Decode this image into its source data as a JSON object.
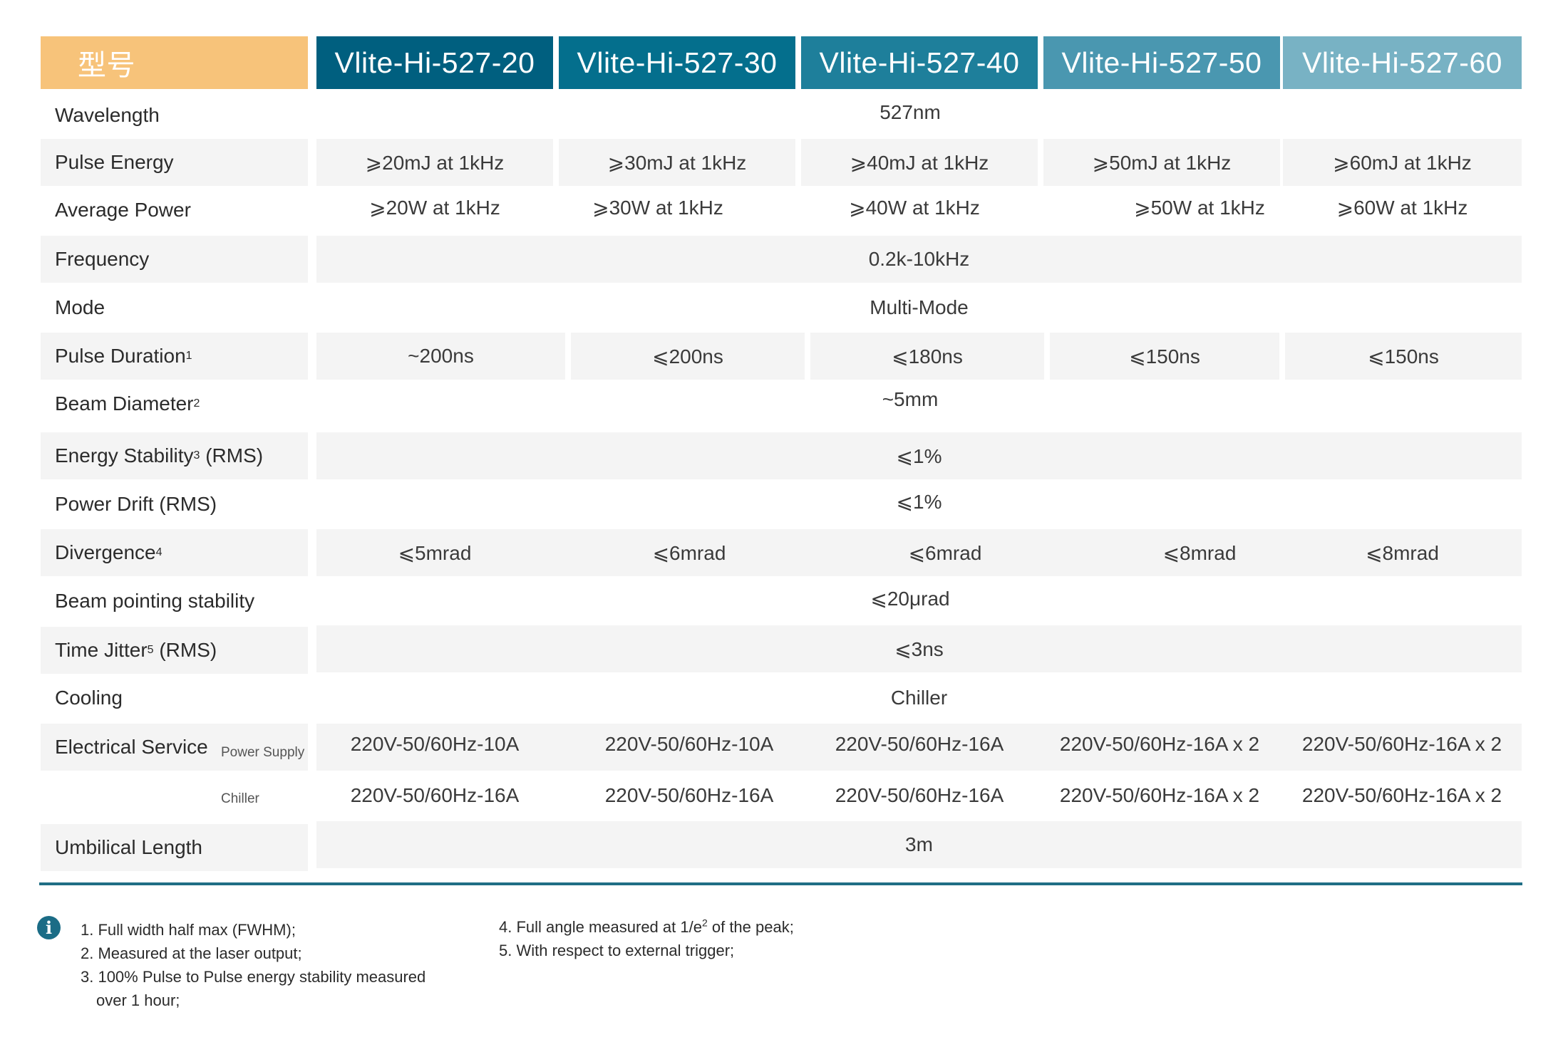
{
  "header": {
    "model_label": "型号",
    "models": [
      "Vlite-Hi-527-20",
      "Vlite-Hi-527-30",
      "Vlite-Hi-527-40",
      "Vlite-Hi-527-50",
      "Vlite-Hi-527-60"
    ],
    "colors": [
      "#005f7f",
      "#046f8d",
      "#1e7f9b",
      "#4a97b0",
      "#78b2c4"
    ]
  },
  "rows": {
    "wavelength": {
      "label": "Wavelength",
      "value": "527nm"
    },
    "pulse_energy": {
      "label": "Pulse Energy",
      "values": [
        "⩾20mJ at 1kHz",
        "⩾30mJ at 1kHz",
        "⩾40mJ at 1kHz",
        "⩾50mJ at 1kHz",
        "⩾60mJ at 1kHz"
      ]
    },
    "average_power": {
      "label": "Average Power",
      "values": [
        "⩾20W at 1kHz",
        "⩾30W at 1kHz",
        "⩾40W at 1kHz",
        "⩾50W at 1kHz",
        "⩾60W at 1kHz"
      ]
    },
    "frequency": {
      "label": "Frequency",
      "value": "0.2k-10kHz"
    },
    "mode": {
      "label": "Mode",
      "value": "Multi-Mode"
    },
    "pulse_duration": {
      "label": "Pulse Duration",
      "sup": "1",
      "values": [
        "~200ns",
        "⩽200ns",
        "⩽180ns",
        "⩽150ns",
        "⩽150ns"
      ]
    },
    "beam_diameter": {
      "label": "Beam Diameter",
      "sup": "2",
      "value": "~5mm"
    },
    "energy_stability": {
      "label": "Energy Stability",
      "sup": "3",
      "suffix": " (RMS)",
      "value": "⩽1%"
    },
    "power_drift": {
      "label": "Power Drift (RMS)",
      "value": "⩽1%"
    },
    "divergence": {
      "label": "Divergence",
      "sup": "4",
      "values": [
        "⩽5mrad",
        "⩽6mrad",
        "⩽6mrad",
        "⩽8mrad",
        "⩽8mrad"
      ]
    },
    "beam_pointing": {
      "label": "Beam pointing stability",
      "value": "⩽20μrad"
    },
    "time_jitter": {
      "label": "Time Jitter",
      "sup": "5",
      "suffix": " (RMS)",
      "value": "⩽3ns"
    },
    "cooling": {
      "label": "Cooling",
      "value": "Chiller"
    },
    "electrical_power": {
      "label": "Electrical Service",
      "sublabel": "Power Supply",
      "values": [
        "220V-50/60Hz-10A",
        "220V-50/60Hz-10A",
        "220V-50/60Hz-16A",
        "220V-50/60Hz-16A x 2",
        "220V-50/60Hz-16A x 2"
      ]
    },
    "electrical_chiller": {
      "sublabel": "Chiller",
      "values": [
        "220V-50/60Hz-16A",
        "220V-50/60Hz-16A",
        "220V-50/60Hz-16A",
        "220V-50/60Hz-16A x 2",
        "220V-50/60Hz-16A x 2"
      ]
    },
    "umbilical": {
      "label": "Umbilical Length",
      "value": "3m"
    }
  },
  "notes": {
    "n1": "1. Full width half max (FWHM);",
    "n2": "2. Measured at the laser output;",
    "n3a": "3. 100% Pulse to Pulse energy stability measured",
    "n3b": "over 1 hour;",
    "n4a": "4. Full angle measured at 1/e",
    "n4sup": "2",
    "n4b": " of the peak;",
    "n5": "5. With respect to external trigger;"
  }
}
